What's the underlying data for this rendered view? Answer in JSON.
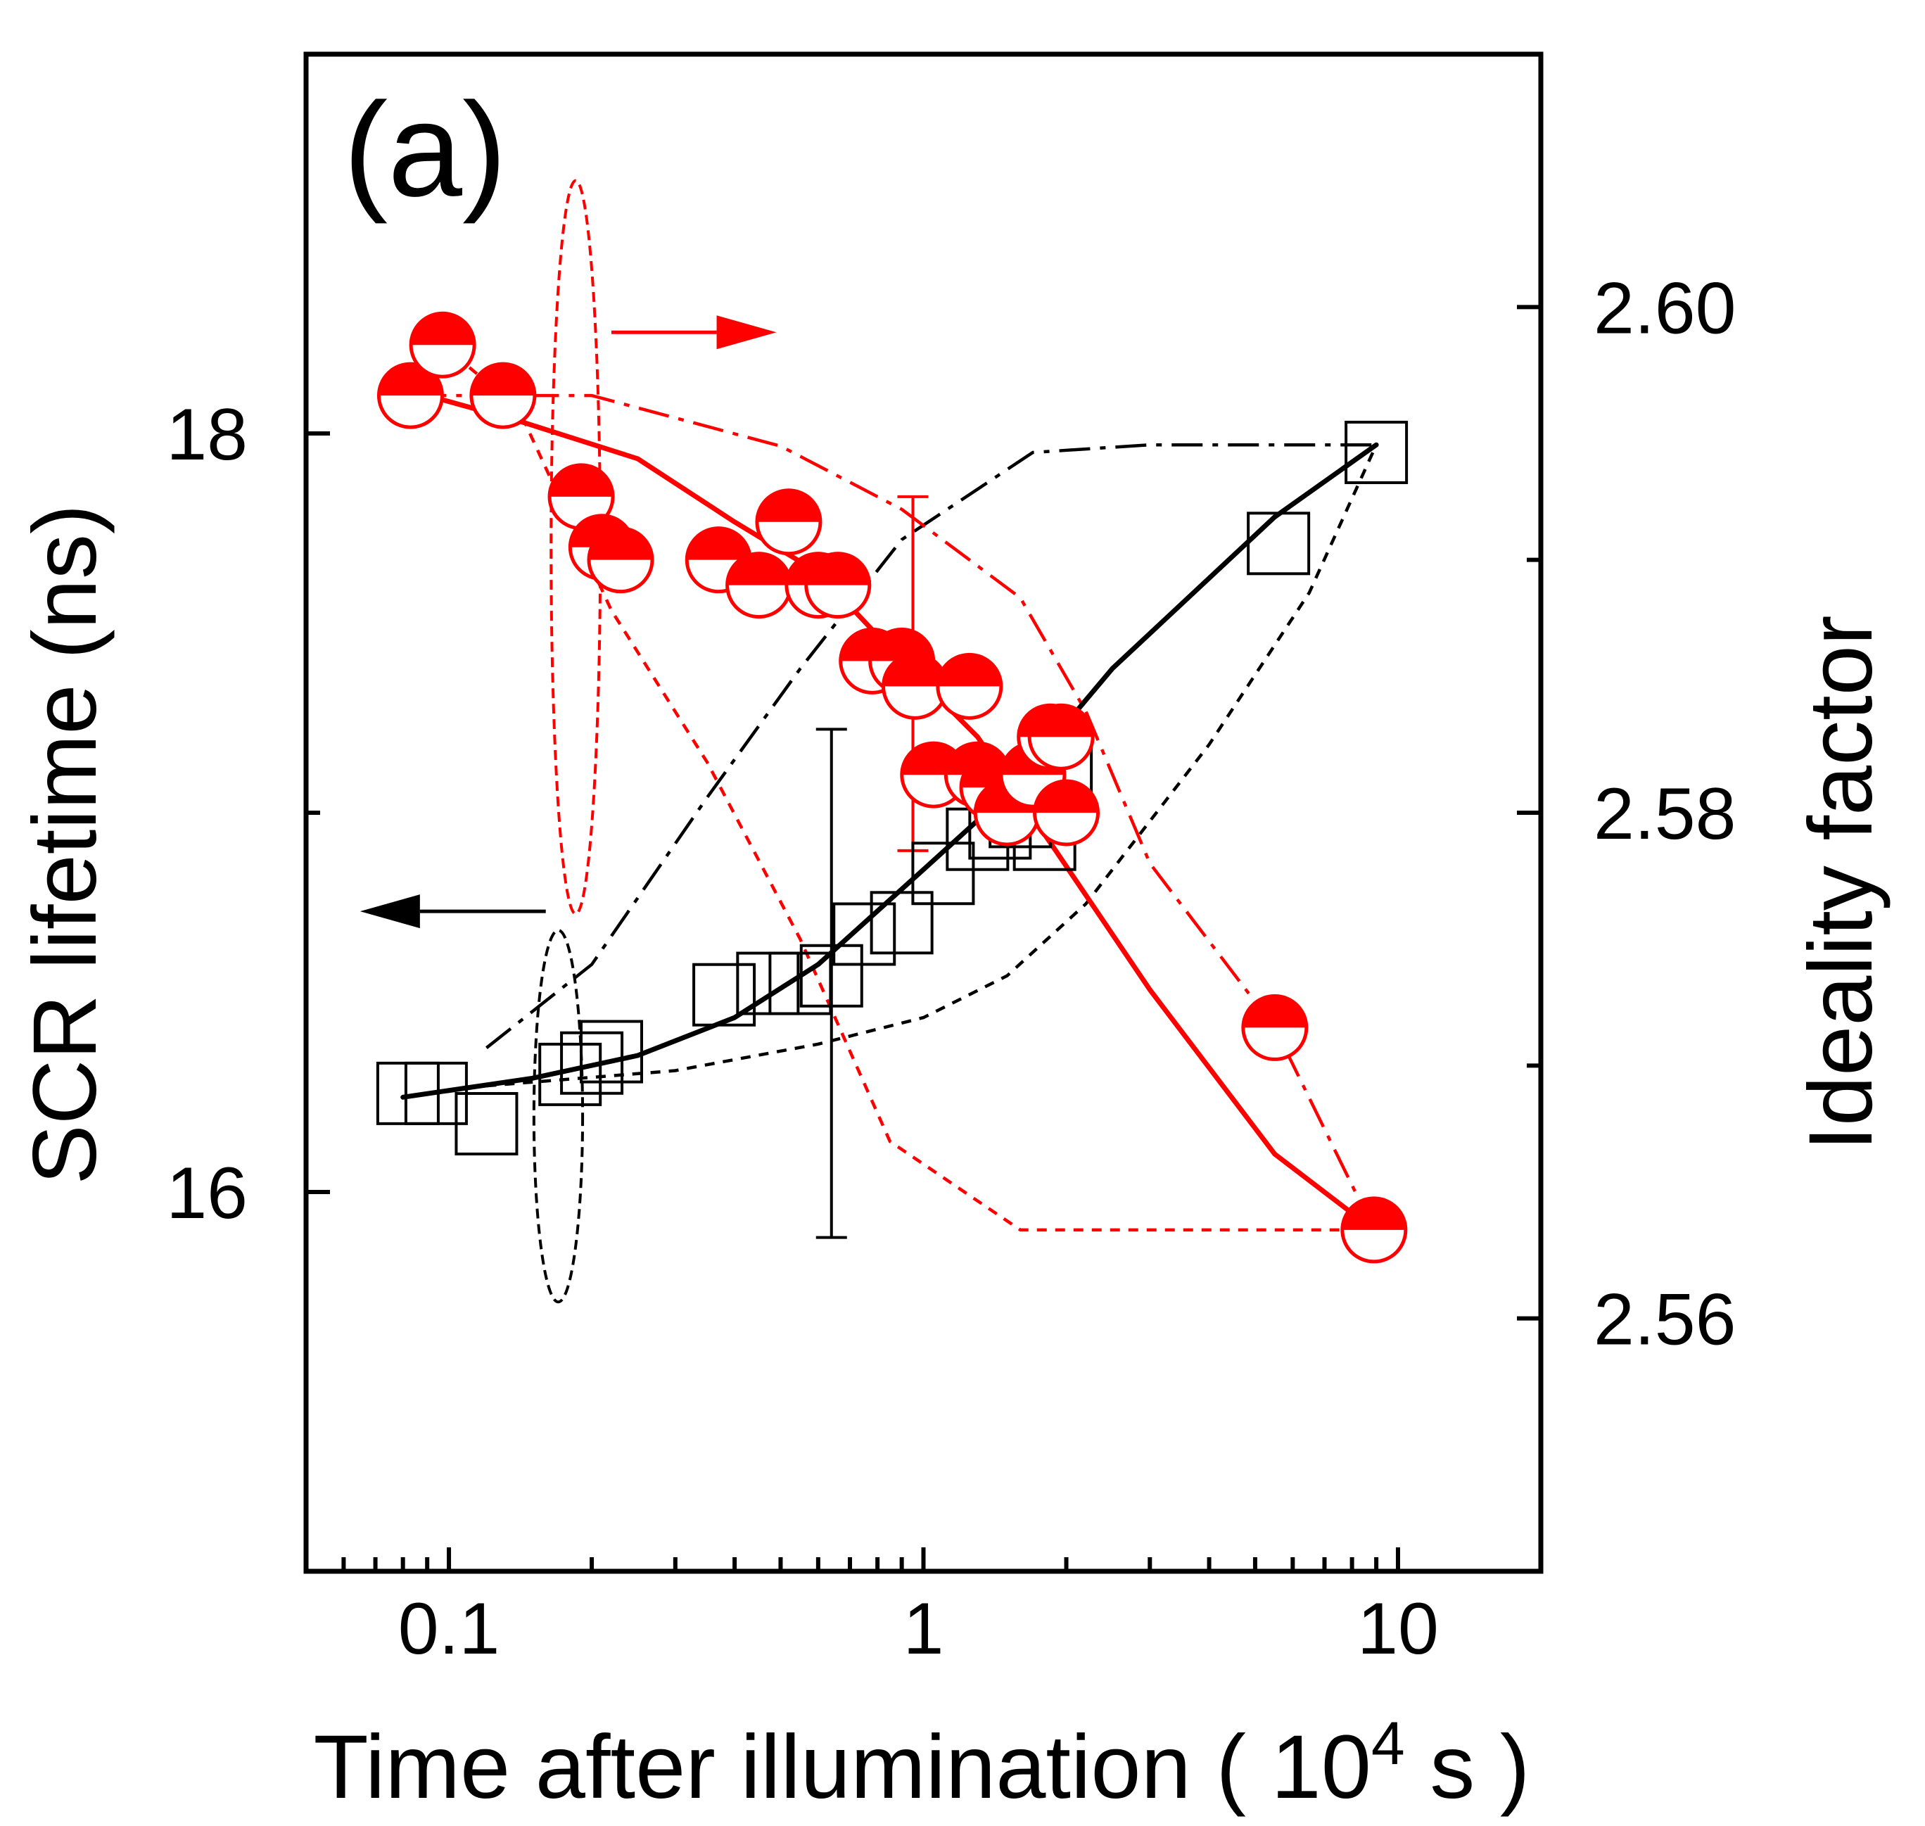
{
  "chart_data": {
    "type": "scatter",
    "panel_label": "(a)",
    "xlabel": "Time after illumination ( 10",
    "xlabel_sup": "4",
    "xlabel_tail": " s )",
    "ylabel_left": "SCR lifetime (ns)",
    "ylabel_right": "Ideality factor",
    "x_scale": "log",
    "xlim": [
      0.05,
      20
    ],
    "ylim_left": [
      15.0,
      19.0
    ],
    "ylim_right": [
      2.55,
      2.61
    ],
    "x_tick_labels": [
      {
        "value": 0.1,
        "label": "0.1"
      },
      {
        "value": 1,
        "label": "1"
      },
      {
        "value": 10,
        "label": "10"
      }
    ],
    "y_left_tick_labels": [
      {
        "value": 16,
        "label": "16"
      },
      {
        "value": 18,
        "label": "18"
      }
    ],
    "y_left_minor_ticks": [
      17
    ],
    "y_right_tick_labels": [
      {
        "value": 2.56,
        "label": "2.56"
      },
      {
        "value": 2.58,
        "label": "2.58"
      },
      {
        "value": 2.6,
        "label": "2.60"
      }
    ],
    "y_right_minor_ticks": [
      2.57,
      2.59
    ],
    "grid": false,
    "series": [
      {
        "axis": "left",
        "marker": "open-square",
        "color": "#000000",
        "points": [
          [
            0.082,
            16.26
          ],
          [
            0.094,
            16.26
          ],
          [
            0.12,
            16.18
          ],
          [
            0.18,
            16.31
          ],
          [
            0.2,
            16.34
          ],
          [
            0.22,
            16.37
          ],
          [
            0.38,
            16.52
          ],
          [
            0.47,
            16.55
          ],
          [
            0.55,
            16.55
          ],
          [
            0.64,
            16.57
          ],
          [
            0.75,
            16.68
          ],
          [
            0.9,
            16.71
          ],
          [
            1.1,
            16.84
          ],
          [
            1.3,
            16.93
          ],
          [
            1.45,
            16.96
          ],
          [
            1.6,
            16.99
          ],
          [
            1.8,
            16.93
          ],
          [
            1.95,
            17.11
          ],
          [
            5.6,
            17.71
          ],
          [
            9.0,
            17.95
          ]
        ],
        "fit_line": [
          [
            0.08,
            16.25
          ],
          [
            0.15,
            16.3
          ],
          [
            0.25,
            16.36
          ],
          [
            0.4,
            16.46
          ],
          [
            0.6,
            16.6
          ],
          [
            1.0,
            16.85
          ],
          [
            1.5,
            17.05
          ],
          [
            2.5,
            17.38
          ],
          [
            5.5,
            17.78
          ],
          [
            9.0,
            17.97
          ]
        ],
        "band_upper": [
          [
            0.12,
            16.38
          ],
          [
            0.2,
            16.6
          ],
          [
            0.35,
            17.04
          ],
          [
            0.55,
            17.38
          ],
          [
            0.9,
            17.72
          ],
          [
            1.7,
            17.95
          ],
          [
            3.0,
            17.97
          ],
          [
            9.0,
            17.97
          ]
        ],
        "band_lower": [
          [
            0.12,
            16.28
          ],
          [
            0.3,
            16.32
          ],
          [
            0.6,
            16.39
          ],
          [
            1.0,
            16.46
          ],
          [
            1.5,
            16.57
          ],
          [
            2.2,
            16.76
          ],
          [
            4.0,
            17.18
          ],
          [
            6.5,
            17.58
          ],
          [
            9.0,
            17.97
          ]
        ],
        "error_bar": {
          "x": 0.64,
          "y_low": 15.88,
          "y_high": 17.22
        },
        "group_ellipse": {
          "x_center": 0.17,
          "y_center": 16.2,
          "x_half": 0.02,
          "y_half": 0.49
        },
        "arrow": {
          "direction": "left",
          "x_start": 0.16,
          "x_end": 0.065,
          "y": 16.74
        }
      },
      {
        "axis": "right",
        "marker": "half-filled-circle",
        "color": "#ff0000",
        "points": [
          [
            0.083,
            2.5965
          ],
          [
            0.097,
            2.5985
          ],
          [
            0.13,
            2.5965
          ],
          [
            0.19,
            2.5925
          ],
          [
            0.21,
            2.5905
          ],
          [
            0.23,
            2.59
          ],
          [
            0.37,
            2.59
          ],
          [
            0.45,
            2.589
          ],
          [
            0.52,
            2.5915
          ],
          [
            0.6,
            2.589
          ],
          [
            0.66,
            2.589
          ],
          [
            0.78,
            2.586
          ],
          [
            0.9,
            2.586
          ],
          [
            0.96,
            2.585
          ],
          [
            1.05,
            2.5815
          ],
          [
            1.25,
            2.585
          ],
          [
            1.3,
            2.5815
          ],
          [
            1.4,
            2.581
          ],
          [
            1.5,
            2.58
          ],
          [
            1.7,
            2.5815
          ],
          [
            1.85,
            2.583
          ],
          [
            1.95,
            2.583
          ],
          [
            2.0,
            2.58
          ],
          [
            5.5,
            2.5715
          ],
          [
            8.9,
            2.5635
          ]
        ],
        "fit_line": [
          [
            0.09,
            2.5965
          ],
          [
            0.14,
            2.5955
          ],
          [
            0.25,
            2.594
          ],
          [
            0.4,
            2.5915
          ],
          [
            0.6,
            2.5895
          ],
          [
            0.9,
            2.586
          ],
          [
            1.3,
            2.583
          ],
          [
            1.9,
            2.5785
          ],
          [
            3.0,
            2.573
          ],
          [
            5.5,
            2.5665
          ],
          [
            8.9,
            2.5635
          ]
        ],
        "band_upper": [
          [
            0.085,
            2.5965
          ],
          [
            0.2,
            2.5965
          ],
          [
            0.5,
            2.5945
          ],
          [
            0.9,
            2.592
          ],
          [
            1.6,
            2.5885
          ],
          [
            2.2,
            2.584
          ],
          [
            3.0,
            2.578
          ],
          [
            5.5,
            2.5715
          ],
          [
            8.9,
            2.5635
          ]
        ],
        "band_lower": [
          [
            0.09,
            2.599
          ],
          [
            0.14,
            2.596
          ],
          [
            0.22,
            2.588
          ],
          [
            0.35,
            2.582
          ],
          [
            0.55,
            2.575
          ],
          [
            0.85,
            2.567
          ],
          [
            1.6,
            2.5635
          ],
          [
            8.9,
            2.5635
          ]
        ],
        "error_bar": {
          "x": 0.95,
          "y_low": 2.5785,
          "y_high": 2.5925
        },
        "group_ellipse": {
          "x_center": 0.185,
          "y_center": 2.5905,
          "x_half": 0.022,
          "y_half": 0.0145
        },
        "arrow": {
          "direction": "right",
          "x_start": 0.22,
          "x_end": 0.49,
          "y": 2.599
        }
      }
    ]
  }
}
